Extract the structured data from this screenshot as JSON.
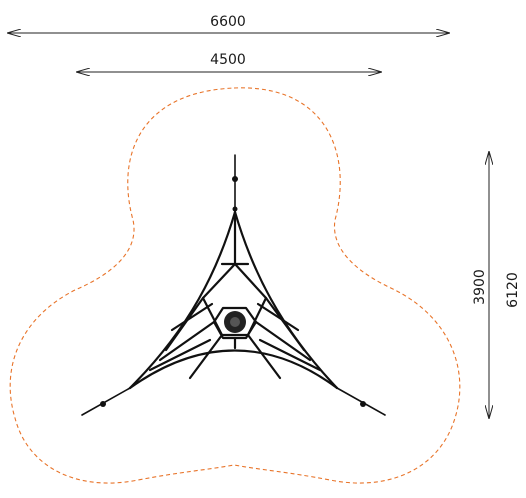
{
  "dimensions": {
    "overall_width": "6600",
    "net_width": "4500",
    "net_depth": "3900",
    "overall_depth": "6120"
  },
  "colors": {
    "safety_zone": "#e8742a",
    "lines": "#111111"
  }
}
